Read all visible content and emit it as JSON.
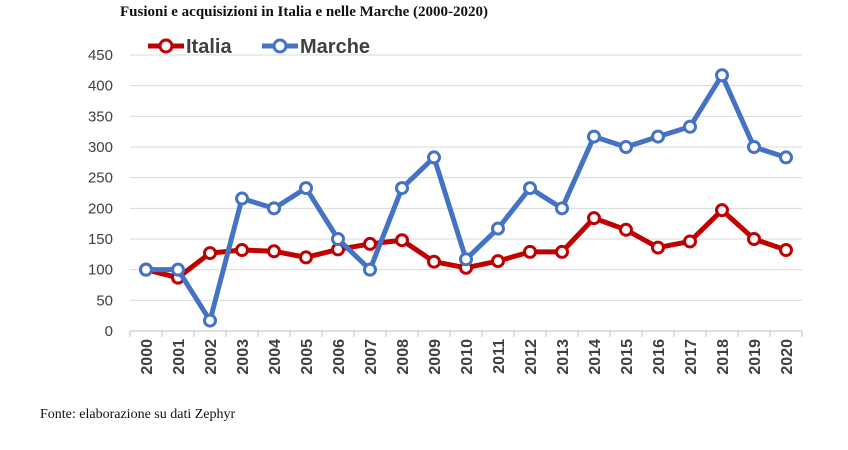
{
  "title": "Fusioni e acquisizioni in Italia e nelle Marche (2000-2020)",
  "source": "Fonte: elaborazione su dati Zephyr",
  "colors": {
    "italia": "#c00000",
    "marche": "#4472c4",
    "grid": "#d9d9d9"
  },
  "chart_data": {
    "type": "line",
    "title": "Fusioni e acquisizioni in Italia e nelle Marche (2000-2020)",
    "xlabel": "",
    "ylabel": "",
    "categories": [
      "2000",
      "2001",
      "2002",
      "2003",
      "2004",
      "2005",
      "2006",
      "2007",
      "2008",
      "2009",
      "2010",
      "2011",
      "2012",
      "2013",
      "2014",
      "2015",
      "2016",
      "2017",
      "2018",
      "2019",
      "2020"
    ],
    "ylim": [
      0,
      450
    ],
    "yticks": [
      0,
      50,
      100,
      150,
      200,
      250,
      300,
      350,
      400,
      450
    ],
    "grid": "horizontal",
    "legend_position": "top-left",
    "series": [
      {
        "name": "Italia",
        "color": "#c00000",
        "values": [
          100,
          87,
          127,
          132,
          130,
          120,
          133,
          142,
          148,
          113,
          103,
          114,
          129,
          129,
          184,
          165,
          136,
          146,
          197,
          150,
          132
        ]
      },
      {
        "name": "Marche",
        "color": "#4472c4",
        "values": [
          100,
          100,
          17,
          216,
          200,
          233,
          150,
          100,
          233,
          283,
          117,
          167,
          233,
          200,
          317,
          300,
          317,
          333,
          417,
          300,
          283
        ]
      }
    ]
  }
}
